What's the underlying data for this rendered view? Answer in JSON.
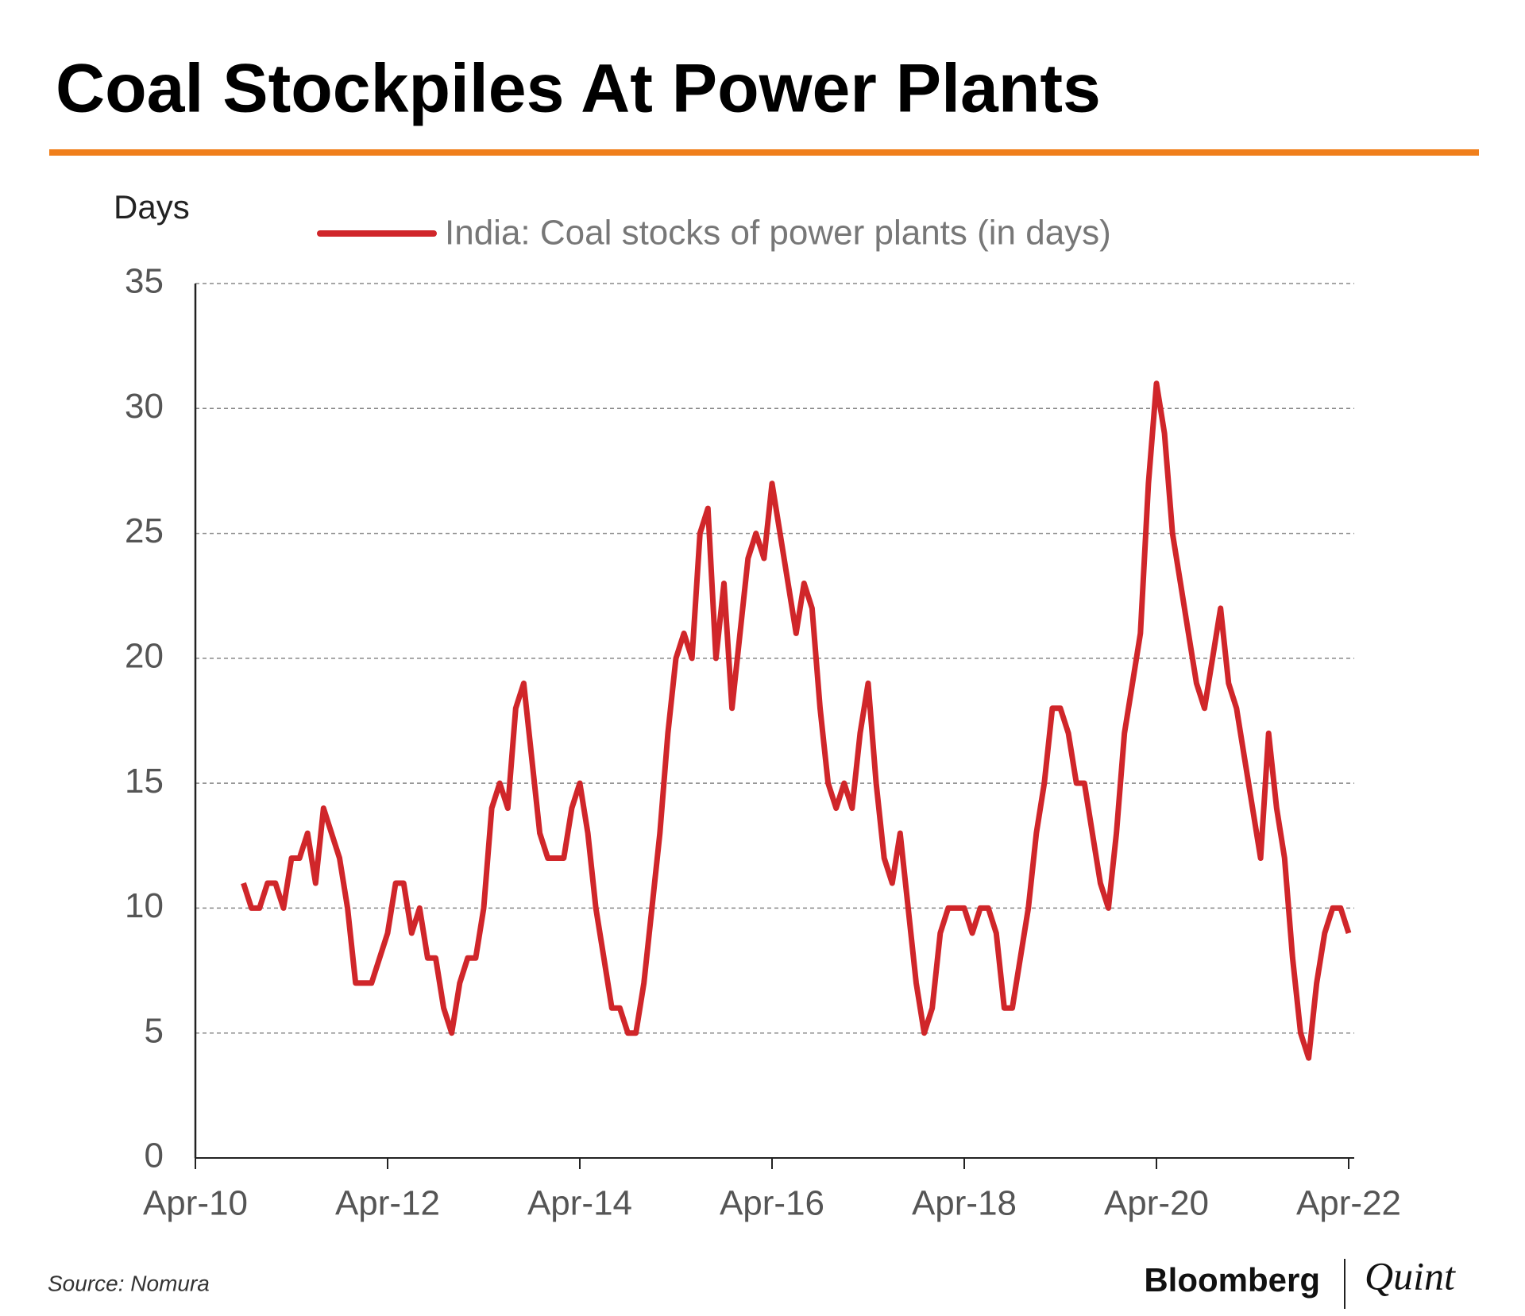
{
  "chart_data": {
    "type": "line",
    "title": "Coal Stockpiles At Power Plants",
    "y_label": "Days",
    "source": "Source: Nomura",
    "logo": [
      "Bloomberg",
      "Quint"
    ],
    "x": [
      "Oct-10",
      "Nov-10",
      "Dec-10",
      "Jan-11",
      "Feb-11",
      "Mar-11",
      "Apr-11",
      "May-11",
      "Jun-11",
      "Jul-11",
      "Aug-11",
      "Sep-11",
      "Oct-11",
      "Nov-11",
      "Dec-11",
      "Jan-12",
      "Feb-12",
      "Mar-12",
      "Apr-12",
      "May-12",
      "Jun-12",
      "Jul-12",
      "Aug-12",
      "Sep-12",
      "Oct-12",
      "Nov-12",
      "Dec-12",
      "Jan-13",
      "Feb-13",
      "Mar-13",
      "Apr-13",
      "May-13",
      "Jun-13",
      "Jul-13",
      "Aug-13",
      "Sep-13",
      "Oct-13",
      "Nov-13",
      "Dec-13",
      "Jan-14",
      "Feb-14",
      "Mar-14",
      "Apr-14",
      "May-14",
      "Jun-14",
      "Jul-14",
      "Aug-14",
      "Sep-14",
      "Oct-14",
      "Nov-14",
      "Dec-14",
      "Jan-15",
      "Feb-15",
      "Mar-15",
      "Apr-15",
      "May-15",
      "Jun-15",
      "Jul-15",
      "Aug-15",
      "Sep-15",
      "Oct-15",
      "Nov-15",
      "Dec-15",
      "Jan-16",
      "Feb-16",
      "Mar-16",
      "Apr-16",
      "May-16",
      "Jun-16",
      "Jul-16",
      "Aug-16",
      "Sep-16",
      "Oct-16",
      "Nov-16",
      "Dec-16",
      "Jan-17",
      "Feb-17",
      "Mar-17",
      "Apr-17",
      "May-17",
      "Jun-17",
      "Jul-17",
      "Aug-17",
      "Sep-17",
      "Oct-17",
      "Nov-17",
      "Dec-17",
      "Jan-18",
      "Feb-18",
      "Mar-18",
      "Apr-18",
      "May-18",
      "Jun-18",
      "Jul-18",
      "Aug-18",
      "Sep-18",
      "Oct-18",
      "Nov-18",
      "Dec-18",
      "Jan-19",
      "Feb-19",
      "Mar-19",
      "Apr-19",
      "May-19",
      "Jun-19",
      "Jul-19",
      "Aug-19",
      "Sep-19",
      "Oct-19",
      "Nov-19",
      "Dec-19",
      "Jan-20",
      "Feb-20",
      "Mar-20",
      "Apr-20",
      "May-20",
      "Jun-20",
      "Jul-20",
      "Aug-20",
      "Sep-20",
      "Oct-20",
      "Nov-20",
      "Dec-20",
      "Jan-21",
      "Feb-21",
      "Mar-21",
      "Apr-21",
      "May-21",
      "Jun-21",
      "Jul-21",
      "Aug-21",
      "Sep-21",
      "Oct-21",
      "Nov-21",
      "Dec-21",
      "Jan-22",
      "Feb-22",
      "Mar-22",
      "Apr-22"
    ],
    "series": [
      {
        "name": "India: Coal stocks of power plants (in days)",
        "color": "#d0262a",
        "values": [
          11,
          10,
          10,
          11,
          11,
          10,
          12,
          12,
          13,
          11,
          14,
          13,
          12,
          10,
          7,
          7,
          7,
          8,
          9,
          11,
          11,
          9,
          10,
          8,
          8,
          6,
          5,
          7,
          8,
          8,
          10,
          14,
          15,
          14,
          18,
          19,
          16,
          13,
          12,
          12,
          12,
          14,
          15,
          13,
          10,
          8,
          6,
          6,
          5,
          5,
          7,
          10,
          13,
          17,
          20,
          21,
          20,
          25,
          26,
          20,
          23,
          18,
          21,
          24,
          25,
          24,
          27,
          25,
          23,
          21,
          23,
          22,
          18,
          15,
          14,
          15,
          14,
          17,
          19,
          15,
          12,
          11,
          13,
          10,
          7,
          5,
          6,
          9,
          10,
          10,
          10,
          9,
          10,
          10,
          9,
          6,
          6,
          8,
          10,
          13,
          15,
          18,
          18,
          17,
          15,
          15,
          13,
          11,
          10,
          13,
          17,
          19,
          21,
          27,
          31,
          29,
          25,
          23,
          21,
          19,
          18,
          20,
          22,
          19,
          18,
          16,
          14,
          12,
          17,
          14,
          12,
          8,
          5,
          4,
          7,
          9,
          10,
          10,
          9
        ]
      }
    ],
    "xlim": [
      "Apr-10",
      "Apr-22"
    ],
    "xticks": [
      "Apr-10",
      "Apr-12",
      "Apr-14",
      "Apr-16",
      "Apr-18",
      "Apr-20",
      "Apr-22"
    ],
    "ylim": [
      0,
      35
    ],
    "yticks": [
      0,
      5,
      10,
      15,
      20,
      25,
      30,
      35
    ],
    "grid": true,
    "legend": "top"
  }
}
